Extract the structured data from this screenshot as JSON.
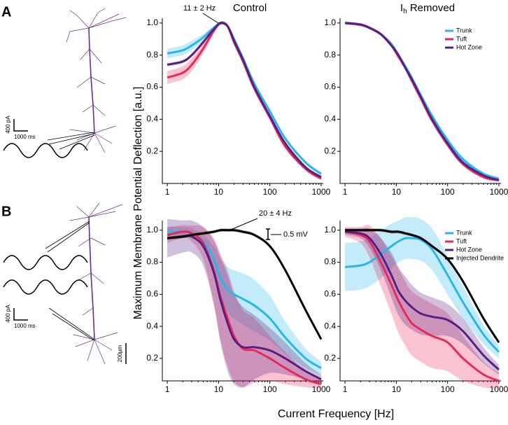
{
  "panel_labels": [
    "A",
    "B"
  ],
  "scale_bars": {
    "current_a": "400 pA",
    "time_a": "1000 ms",
    "current_b": "400 pA",
    "time_b": "1000 ms",
    "length_b": "200μm"
  },
  "shared_axes": {
    "y_label": "Maximum Membrane Potential Deflection [a.u.]",
    "x_label": "Current Frequency [Hz]"
  },
  "chart_data": [
    {
      "type": "line",
      "title": "Control",
      "xlog": true,
      "xlim": [
        0.8,
        1100
      ],
      "xticks": [
        1,
        10,
        100,
        1000
      ],
      "ylim": [
        0,
        1.03
      ],
      "yticks": [
        0.2,
        0.4,
        0.6,
        0.8,
        {
          "value": 1,
          "label": "1.0"
        }
      ],
      "x": [
        1,
        2,
        3,
        5,
        8,
        11,
        15,
        20,
        30,
        50,
        100,
        200,
        500,
        1000
      ],
      "series": [
        {
          "color": "#29b6e8",
          "values": [
            0.81,
            0.83,
            0.86,
            0.91,
            0.97,
            1.0,
            0.98,
            0.9,
            0.78,
            0.62,
            0.45,
            0.28,
            0.13,
            0.06
          ],
          "errors": [
            0.03,
            0.03,
            0.03,
            0.02,
            0.01,
            0.01,
            0.01,
            0.01,
            0.01,
            0.01,
            0.01,
            0.01,
            0.01,
            0.01
          ]
        },
        {
          "color": "#e8285a",
          "values": [
            0.66,
            0.69,
            0.74,
            0.84,
            0.95,
            1.0,
            0.98,
            0.88,
            0.76,
            0.59,
            0.41,
            0.23,
            0.09,
            0.03
          ],
          "errors": [
            0.04,
            0.04,
            0.04,
            0.03,
            0.02,
            0.01,
            0.01,
            0.01,
            0.01,
            0.01,
            0.01,
            0.01,
            0.01,
            0.01
          ]
        },
        {
          "color": "#5a1e82",
          "values": [
            0.74,
            0.76,
            0.8,
            0.88,
            0.96,
            1.0,
            0.98,
            0.89,
            0.77,
            0.6,
            0.42,
            0.25,
            0.1,
            0.04
          ],
          "errors": [
            0.01,
            0.01,
            0.01,
            0.01,
            0.01,
            0.01,
            0.01,
            0.01,
            0.01,
            0.01,
            0.01,
            0.01,
            0.01,
            0.01
          ]
        }
      ],
      "annotations": [
        {
          "text": "11 ± 2 Hz"
        }
      ]
    },
    {
      "type": "line",
      "title": "I",
      "title_subscript": "h",
      "title_rest": " Removed",
      "xlog": true,
      "xlim": [
        0.8,
        1100
      ],
      "xticks": [
        1,
        10,
        100,
        1000
      ],
      "ylim": [
        0,
        1.03
      ],
      "yticks": [
        0.2,
        0.4,
        0.6,
        0.8,
        {
          "value": 1,
          "label": "1.0"
        }
      ],
      "legend": "upper right",
      "x": [
        1,
        2,
        3,
        5,
        8,
        11,
        15,
        20,
        30,
        50,
        100,
        200,
        500,
        1000
      ],
      "series": [
        {
          "name": "Trunk",
          "color": "#29b6e8",
          "values": [
            1.0,
            0.99,
            0.97,
            0.93,
            0.87,
            0.8,
            0.73,
            0.66,
            0.55,
            0.42,
            0.27,
            0.15,
            0.06,
            0.03
          ],
          "errors": [
            0.01,
            0.01,
            0.01,
            0.01,
            0.01,
            0.01,
            0.01,
            0.01,
            0.015,
            0.015,
            0.015,
            0.015,
            0.01,
            0.01
          ]
        },
        {
          "name": "Tuft",
          "color": "#e8285a",
          "values": [
            1.0,
            0.99,
            0.97,
            0.93,
            0.86,
            0.79,
            0.72,
            0.64,
            0.53,
            0.39,
            0.24,
            0.12,
            0.04,
            0.02
          ],
          "errors": [
            0.01,
            0.01,
            0.01,
            0.01,
            0.01,
            0.01,
            0.01,
            0.01,
            0.01,
            0.01,
            0.01,
            0.01,
            0.01,
            0.01
          ]
        },
        {
          "name": "Hot Zone",
          "color": "#5a1e82",
          "values": [
            1.0,
            0.99,
            0.97,
            0.93,
            0.86,
            0.8,
            0.72,
            0.65,
            0.54,
            0.4,
            0.25,
            0.13,
            0.05,
            0.02
          ],
          "errors": [
            0.005,
            0.005,
            0.005,
            0.005,
            0.005,
            0.005,
            0.005,
            0.005,
            0.005,
            0.005,
            0.005,
            0.005,
            0.005,
            0.005
          ]
        }
      ]
    },
    {
      "type": "line",
      "xlog": true,
      "xlim": [
        0.8,
        1100
      ],
      "xticks": [
        1,
        10,
        100,
        1000
      ],
      "ylim": [
        0.06,
        1.06
      ],
      "yticks": [
        0.2,
        0.4,
        0.6,
        0.8,
        {
          "value": 1,
          "label": "1.0"
        }
      ],
      "x": [
        1,
        2,
        3,
        5,
        8,
        11,
        15,
        20,
        30,
        50,
        100,
        200,
        500,
        1000
      ],
      "series": [
        {
          "color": "#29b6e8",
          "values": [
            0.99,
            0.99,
            0.98,
            0.93,
            0.82,
            0.7,
            0.63,
            0.6,
            0.57,
            0.53,
            0.45,
            0.33,
            0.2,
            0.14
          ],
          "errors": [
            0.03,
            0.03,
            0.03,
            0.04,
            0.08,
            0.12,
            0.14,
            0.15,
            0.16,
            0.16,
            0.14,
            0.1,
            0.06,
            0.04
          ]
        },
        {
          "color": "#e8285a",
          "values": [
            0.97,
            0.99,
            0.98,
            0.92,
            0.75,
            0.58,
            0.45,
            0.34,
            0.26,
            0.25,
            0.2,
            0.14,
            0.07,
            0.04
          ],
          "errors": [
            0.05,
            0.04,
            0.05,
            0.1,
            0.2,
            0.27,
            0.3,
            0.28,
            0.24,
            0.2,
            0.14,
            0.1,
            0.05,
            0.03
          ]
        },
        {
          "color": "#5a1e82",
          "values": [
            0.95,
            0.96,
            0.96,
            0.9,
            0.74,
            0.56,
            0.42,
            0.32,
            0.27,
            0.27,
            0.25,
            0.2,
            0.12,
            0.07
          ],
          "errors": [
            0.12,
            0.1,
            0.1,
            0.12,
            0.2,
            0.27,
            0.3,
            0.28,
            0.25,
            0.2,
            0.14,
            0.1,
            0.05,
            0.03
          ]
        },
        {
          "color": "#000000",
          "values": [
            0.95,
            0.96,
            0.97,
            0.98,
            0.99,
            1.0,
            1.0,
            1.0,
            0.99,
            0.97,
            0.9,
            0.75,
            0.5,
            0.32
          ],
          "errors": [
            0.01,
            0.01,
            0.01,
            0.01,
            0.01,
            0.01,
            0.01,
            0.01,
            0.01,
            0.01,
            0.01,
            0.01,
            0.01,
            0.01
          ]
        }
      ],
      "annotations": [
        {
          "text": "20 ± 4 Hz"
        },
        {
          "text": "0.5 mV"
        }
      ]
    },
    {
      "type": "line",
      "xlog": true,
      "xlim": [
        0.8,
        1100
      ],
      "xticks": [
        1,
        10,
        100,
        1000
      ],
      "ylim": [
        0.06,
        1.06
      ],
      "yticks": [
        0.2,
        0.4,
        0.6,
        0.8,
        {
          "value": 1,
          "label": "1.0"
        }
      ],
      "legend": "upper right",
      "x": [
        1,
        2,
        3,
        5,
        8,
        11,
        15,
        20,
        30,
        50,
        100,
        200,
        500,
        1000
      ],
      "series": [
        {
          "name": "Trunk",
          "color": "#29b6e8",
          "values": [
            0.77,
            0.78,
            0.8,
            0.85,
            0.9,
            0.93,
            0.95,
            0.95,
            0.94,
            0.88,
            0.72,
            0.55,
            0.35,
            0.24
          ],
          "errors": [
            0.15,
            0.15,
            0.15,
            0.15,
            0.14,
            0.13,
            0.13,
            0.13,
            0.13,
            0.13,
            0.12,
            0.1,
            0.06,
            0.04
          ]
        },
        {
          "name": "Tuft",
          "color": "#e8285a",
          "values": [
            0.99,
            0.97,
            0.93,
            0.8,
            0.66,
            0.56,
            0.48,
            0.42,
            0.38,
            0.34,
            0.3,
            0.2,
            0.1,
            0.06
          ],
          "errors": [
            0.03,
            0.05,
            0.1,
            0.15,
            0.18,
            0.2,
            0.2,
            0.2,
            0.2,
            0.2,
            0.18,
            0.14,
            0.08,
            0.05
          ]
        },
        {
          "name": "Hot Zone",
          "color": "#5a1e82",
          "values": [
            0.99,
            0.98,
            0.95,
            0.85,
            0.72,
            0.62,
            0.56,
            0.52,
            0.48,
            0.46,
            0.44,
            0.37,
            0.22,
            0.13
          ],
          "errors": [
            0.02,
            0.03,
            0.06,
            0.1,
            0.14,
            0.15,
            0.15,
            0.14,
            0.13,
            0.12,
            0.1,
            0.08,
            0.05,
            0.03
          ]
        },
        {
          "name": "Injected Dendrite",
          "color": "#000000",
          "values": [
            1.0,
            1.0,
            1.0,
            1.0,
            0.99,
            0.99,
            0.98,
            0.97,
            0.95,
            0.9,
            0.82,
            0.68,
            0.45,
            0.3
          ],
          "errors": [
            0.01,
            0.01,
            0.01,
            0.01,
            0.01,
            0.01,
            0.01,
            0.01,
            0.01,
            0.01,
            0.01,
            0.01,
            0.01,
            0.01
          ]
        }
      ]
    }
  ]
}
